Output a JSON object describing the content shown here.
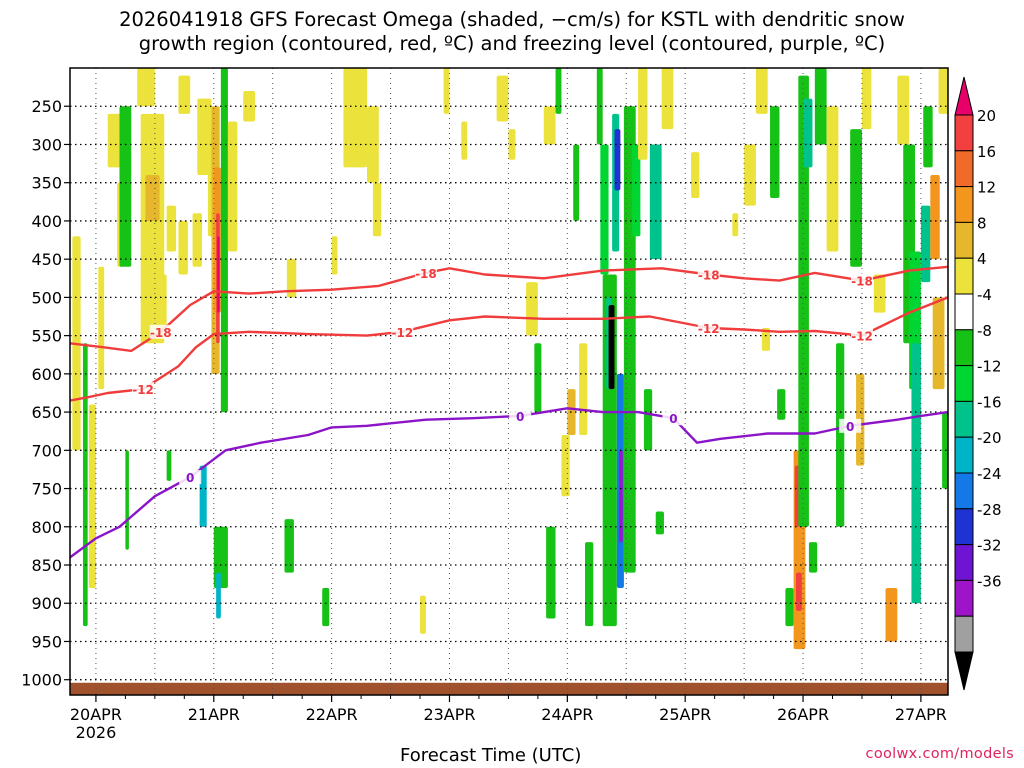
{
  "chart_data": {
    "type": "heatmap",
    "title": "2026041918 GFS Forecast Omega (shaded, −cm/s) for KSTL with dendritic snow growth region (contoured, red, ºC) and freezing level (contoured, purple, ºC)",
    "title_lines": [
      "2026041918 GFS Forecast Omega (shaded, −cm/s) for KSTL with dendritic snow",
      "growth region (contoured, red, ºC) and freezing level (contoured, purple, ºC)"
    ],
    "xlabel": "Forecast Time (UTC)",
    "ylabel": "",
    "x_ticks": [
      "20APR",
      "21APR",
      "22APR",
      "23APR",
      "24APR",
      "25APR",
      "26APR",
      "27APR"
    ],
    "x_year": "2026",
    "x_range_days": [
      -0.22,
      7.23
    ],
    "y_ticks": [
      250,
      300,
      350,
      400,
      450,
      500,
      550,
      600,
      650,
      700,
      750,
      800,
      850,
      900,
      950,
      1000
    ],
    "y_range_hpa": [
      200,
      1020
    ],
    "colorbar": {
      "labels": [
        "20",
        "16",
        "12",
        "8",
        "4",
        "-4",
        "-8",
        "-12",
        "-16",
        "-20",
        "-24",
        "-28",
        "-32",
        "-36"
      ],
      "colors": [
        "#e8006a",
        "#f24040",
        "#f06a2a",
        "#f2961e",
        "#e6b72a",
        "#ece23c",
        "#ffffff",
        "#17c217",
        "#00d632",
        "#00c38c",
        "#00b4c8",
        "#1478e6",
        "#1f32d2",
        "#6e14d2",
        "#9e14c8",
        "#a0a0a0",
        "#000000"
      ]
    },
    "series": [
      {
        "name": "-12 ºC (dendritic upper)",
        "label": "-12",
        "color": "#f03c3c",
        "x": [
          -0.22,
          -0.05,
          0.1,
          0.4,
          0.7,
          0.85,
          1.0,
          1.3,
          1.8,
          2.3,
          2.6,
          3.0,
          3.3,
          3.8,
          4.3,
          4.7,
          5.2,
          5.5,
          5.8,
          6.1,
          6.5,
          6.9,
          7.23
        ],
        "y": [
          635,
          630,
          625,
          620,
          590,
          565,
          548,
          545,
          548,
          550,
          545,
          530,
          525,
          528,
          528,
          525,
          540,
          542,
          545,
          544,
          550,
          520,
          500
        ]
      },
      {
        "name": "-18 ºC (dendritic lower)",
        "label": "-18",
        "color": "#f03c3c",
        "x": [
          -0.22,
          0.05,
          0.3,
          0.55,
          0.8,
          1.0,
          1.3,
          1.6,
          2.0,
          2.4,
          2.8,
          3.0,
          3.3,
          3.8,
          4.3,
          4.8,
          5.2,
          5.5,
          5.8,
          6.1,
          6.5,
          6.9,
          7.23
        ],
        "y": [
          560,
          565,
          570,
          545,
          510,
          492,
          495,
          492,
          490,
          485,
          468,
          462,
          470,
          475,
          465,
          462,
          470,
          475,
          478,
          468,
          478,
          465,
          460
        ]
      },
      {
        "name": "0 ºC (freezing level)",
        "label": "0",
        "color": "#8c14c8",
        "x": [
          -0.22,
          0.0,
          0.2,
          0.5,
          0.8,
          1.1,
          1.4,
          1.8,
          2.0,
          2.3,
          2.8,
          3.2,
          3.6,
          4.0,
          4.3,
          4.6,
          4.9,
          5.1,
          5.3,
          5.7,
          6.1,
          6.4,
          6.8,
          7.0,
          7.23
        ],
        "y": [
          840,
          815,
          800,
          760,
          735,
          700,
          690,
          680,
          670,
          668,
          660,
          658,
          655,
          645,
          650,
          650,
          658,
          690,
          685,
          678,
          678,
          668,
          660,
          655,
          650
        ]
      }
    ],
    "shading": "omega field rendered as colored cells"
  },
  "credit": "coolwx.com/models"
}
